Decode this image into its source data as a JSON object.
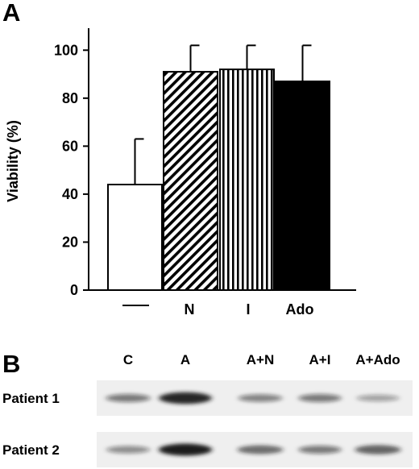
{
  "panels": {
    "a_label": "A",
    "b_label": "B"
  },
  "chart_data": {
    "type": "bar",
    "title": "",
    "xlabel": "",
    "ylabel": "Viability (%)",
    "ylim": [
      0,
      110
    ],
    "yticks": [
      0,
      20,
      40,
      60,
      80,
      100
    ],
    "categories": [
      "—",
      "N",
      "I",
      "Ado"
    ],
    "values": [
      44,
      91,
      92,
      87
    ],
    "errors": [
      19,
      11,
      10,
      15
    ],
    "fills": [
      "white",
      "diagonal-hatch",
      "vertical-stripes",
      "black"
    ],
    "grid": false,
    "legend": "none"
  },
  "blot": {
    "lanes": [
      "C",
      "A",
      "A+N",
      "A+I",
      "A+Ado"
    ],
    "rows": [
      {
        "label": "Patient 1",
        "intensities": [
          0.45,
          0.95,
          0.4,
          0.45,
          0.25
        ]
      },
      {
        "label": "Patient 2",
        "intensities": [
          0.35,
          1.0,
          0.55,
          0.45,
          0.6
        ]
      }
    ]
  },
  "colors": {
    "ink": "#000000",
    "background": "#ffffff",
    "band": "#1a1a1a"
  }
}
